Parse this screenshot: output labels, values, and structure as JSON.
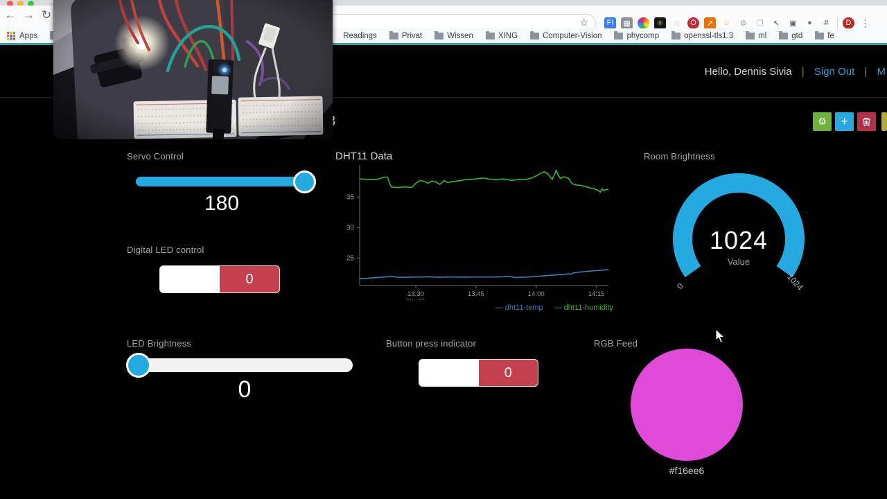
{
  "browser": {
    "traffic_lights": [
      "#f4574e",
      "#f6b62f",
      "#39c341"
    ],
    "nav": {
      "back": "←",
      "forward": "→",
      "reload": "↻"
    },
    "address": {
      "value": "",
      "star_glyph": "☆"
    },
    "apps_label": "Apps",
    "bookmarks": [
      "Readings",
      "Privat",
      "Wissen",
      "XING",
      "Computer-Vision",
      "phycomp",
      "openssl-tls1.3",
      "ml",
      "gtd",
      "fe"
    ],
    "apps_grid_colors": [
      "#ea4335",
      "#fbbc05",
      "#34a853",
      "#4285f4",
      "#ea4335",
      "#34a853",
      "#fbbc05",
      "#4285f4",
      "#ea4335"
    ],
    "extensions": [
      {
        "name": "fi-extension-icon",
        "glyph": "FI",
        "bg": "#3d7ef0",
        "fg": "#ffffff",
        "round": false
      },
      {
        "name": "bar-chart-extension-icon",
        "glyph": "▦",
        "bg": "#8a8f98",
        "fg": "#ffffff",
        "round": false
      },
      {
        "name": "color-wheel-extension-icon",
        "glyph": "",
        "bg": "wheel",
        "fg": "",
        "round": true
      },
      {
        "name": "atom-extension-icon",
        "glyph": "⚛",
        "bg": "#16171b",
        "fg": "#e8c94a",
        "round": false
      },
      {
        "name": "target-extension-icon",
        "glyph": "◎",
        "bg": "#ffffff",
        "fg": "#c9ccd1",
        "round": true
      },
      {
        "name": "opera-extension-icon",
        "glyph": "O",
        "bg": "#c22b35",
        "fg": "#ffffff",
        "round": true
      },
      {
        "name": "analytics-extension-icon",
        "glyph": "↗",
        "bg": "#e8710a",
        "fg": "#ffffff",
        "round": false
      },
      {
        "name": "smiley-extension-icon",
        "glyph": "☺",
        "bg": "#ffffff",
        "fg": "#f2ac33",
        "round": true
      },
      {
        "name": "gear-extension-icon",
        "glyph": "⚙",
        "bg": "#ffffff",
        "fg": "#9aa0a6",
        "round": false
      },
      {
        "name": "chat-extension-icon",
        "glyph": "❐",
        "bg": "#ffffff",
        "fg": "#aab0b6",
        "round": false
      },
      {
        "name": "cursor-extension-icon",
        "glyph": "↖",
        "bg": "#ffffff",
        "fg": "#4a4d52",
        "round": false
      },
      {
        "name": "monitor-extension-icon",
        "glyph": "▣",
        "bg": "#ffffff",
        "fg": "#6a6e73",
        "round": false
      },
      {
        "name": "dark-circle-extension-icon",
        "glyph": "●",
        "bg": "#ffffff",
        "fg": "#6f7479",
        "round": true
      },
      {
        "name": "frame-extension-icon",
        "glyph": "#",
        "bg": "#ffffff",
        "fg": "#3a3d42",
        "round": false
      }
    ],
    "profile": {
      "initial": "D",
      "bg": "#b82c26"
    },
    "menu_glyph": "⋮"
  },
  "page": {
    "header": {
      "greeting": "Hello, Dennis Sivia",
      "separator": "|",
      "sign_out": "Sign Out",
      "menu_cut": "M"
    },
    "title_fragment": "3",
    "toolbar": {
      "gear_glyph": "⚙",
      "plus_glyph": "+",
      "gear_color": "#6cb33e",
      "plus_color": "#24a9e1",
      "trash_color": "#b13247",
      "sliver_color": "#b3aa3e"
    },
    "widgets": {
      "servo": {
        "label": "Servo Control",
        "value": "180"
      },
      "digital_led": {
        "label": "Digital LED control",
        "value": "0"
      },
      "dht11": {
        "title": "DHT11 Data"
      },
      "room_brightness": {
        "label": "Room Brightness",
        "value": "1024",
        "unit": "Value",
        "min": "0",
        "max": "1024",
        "color": "#24a9e1"
      },
      "led_brightness": {
        "label": "LED Brightness",
        "value": "0"
      },
      "button_indicator": {
        "label": "Button press indicator",
        "value": "0"
      },
      "rgb": {
        "label": "RGB Feed",
        "hex": "#f16ee6",
        "display_color": "#e04ad9"
      }
    }
  },
  "chart_data": {
    "type": "line",
    "title": "DHT11 Data",
    "x_start_time": "13:16",
    "x_end_time": "14:18",
    "x_total_minutes": 62,
    "ymin": 20.5,
    "ymax": 40.3,
    "yticks": [
      25,
      30,
      35
    ],
    "xticks": [
      {
        "minute": 14,
        "label": "13:30",
        "sub": "Nov 22"
      },
      {
        "minute": 29,
        "label": "13:45",
        "sub": ""
      },
      {
        "minute": 44,
        "label": "14:00",
        "sub": ""
      },
      {
        "minute": 59,
        "label": "14:15",
        "sub": ""
      }
    ],
    "grid": false,
    "legend_position": "bottom-right",
    "series": [
      {
        "name": "dht11-temp",
        "color": "#3d7fb7",
        "legend_color": "#4080ba",
        "points": [
          [
            0,
            21.65
          ],
          [
            2,
            21.7
          ],
          [
            4,
            21.8
          ],
          [
            6,
            21.9
          ],
          [
            7,
            21.95
          ],
          [
            8,
            22.0
          ],
          [
            9,
            21.9
          ],
          [
            10,
            21.85
          ],
          [
            12,
            21.85
          ],
          [
            14,
            21.9
          ],
          [
            16,
            21.9
          ],
          [
            17,
            21.95
          ],
          [
            18,
            21.9
          ],
          [
            20,
            21.85
          ],
          [
            22,
            21.9
          ],
          [
            24,
            21.9
          ],
          [
            26,
            21.88
          ],
          [
            28,
            21.9
          ],
          [
            30,
            21.9
          ],
          [
            32,
            21.9
          ],
          [
            34,
            21.9
          ],
          [
            36,
            21.95
          ],
          [
            37,
            22.0
          ],
          [
            38,
            21.9
          ],
          [
            39,
            21.82
          ],
          [
            40,
            21.85
          ],
          [
            42,
            21.9
          ],
          [
            44,
            22.0
          ],
          [
            46,
            22.1
          ],
          [
            48,
            22.2
          ],
          [
            50,
            22.3
          ],
          [
            51,
            22.28
          ],
          [
            52,
            22.45
          ],
          [
            52.6,
            22.38
          ],
          [
            53.5,
            22.6
          ],
          [
            55,
            22.72
          ],
          [
            57,
            22.85
          ],
          [
            59,
            22.95
          ],
          [
            61,
            23.05
          ],
          [
            62,
            23.1
          ]
        ]
      },
      {
        "name": "dht11-humidity",
        "color": "#35b835",
        "legend_color": "#3fb53f",
        "points": [
          [
            0,
            38.0
          ],
          [
            2,
            37.95
          ],
          [
            4,
            37.9
          ],
          [
            5,
            38.05
          ],
          [
            6,
            38.3
          ],
          [
            7,
            38.25
          ],
          [
            7.5,
            37.2
          ],
          [
            8,
            36.65
          ],
          [
            10,
            36.6
          ],
          [
            11,
            36.7
          ],
          [
            12,
            36.65
          ],
          [
            13,
            36.6
          ],
          [
            14,
            37.3
          ],
          [
            15,
            37.75
          ],
          [
            16,
            37.6
          ],
          [
            17,
            37.3
          ],
          [
            18,
            37.65
          ],
          [
            19,
            37.5
          ],
          [
            20,
            37.1
          ],
          [
            21,
            37.75
          ],
          [
            22,
            37.4
          ],
          [
            23,
            37.55
          ],
          [
            24,
            37.65
          ],
          [
            25,
            37.7
          ],
          [
            26,
            37.85
          ],
          [
            27,
            37.9
          ],
          [
            28,
            37.95
          ],
          [
            29,
            38.0
          ],
          [
            30,
            38.1
          ],
          [
            31,
            38.15
          ],
          [
            32,
            38.0
          ],
          [
            33,
            37.95
          ],
          [
            34,
            37.9
          ],
          [
            35,
            37.95
          ],
          [
            36,
            38.0
          ],
          [
            37,
            37.85
          ],
          [
            38,
            37.75
          ],
          [
            39,
            37.85
          ],
          [
            40,
            37.95
          ],
          [
            41,
            37.9
          ],
          [
            42,
            38.0
          ],
          [
            43,
            38.2
          ],
          [
            44,
            38.5
          ],
          [
            45,
            38.9
          ],
          [
            46,
            39.2
          ],
          [
            47,
            38.8
          ],
          [
            47.5,
            38.3
          ],
          [
            48,
            37.95
          ],
          [
            49,
            39.45
          ],
          [
            49.5,
            38.6
          ],
          [
            50,
            38.1
          ],
          [
            51,
            38.35
          ],
          [
            52,
            38.1
          ],
          [
            53,
            37.2
          ],
          [
            54,
            37.0
          ],
          [
            55,
            36.95
          ],
          [
            56,
            36.8
          ],
          [
            57,
            36.6
          ],
          [
            58,
            36.45
          ],
          [
            59,
            36.25
          ],
          [
            60,
            35.85
          ],
          [
            60.4,
            36.4
          ],
          [
            60.8,
            36.05
          ],
          [
            61.4,
            36.25
          ],
          [
            62,
            36.3
          ]
        ]
      }
    ]
  }
}
